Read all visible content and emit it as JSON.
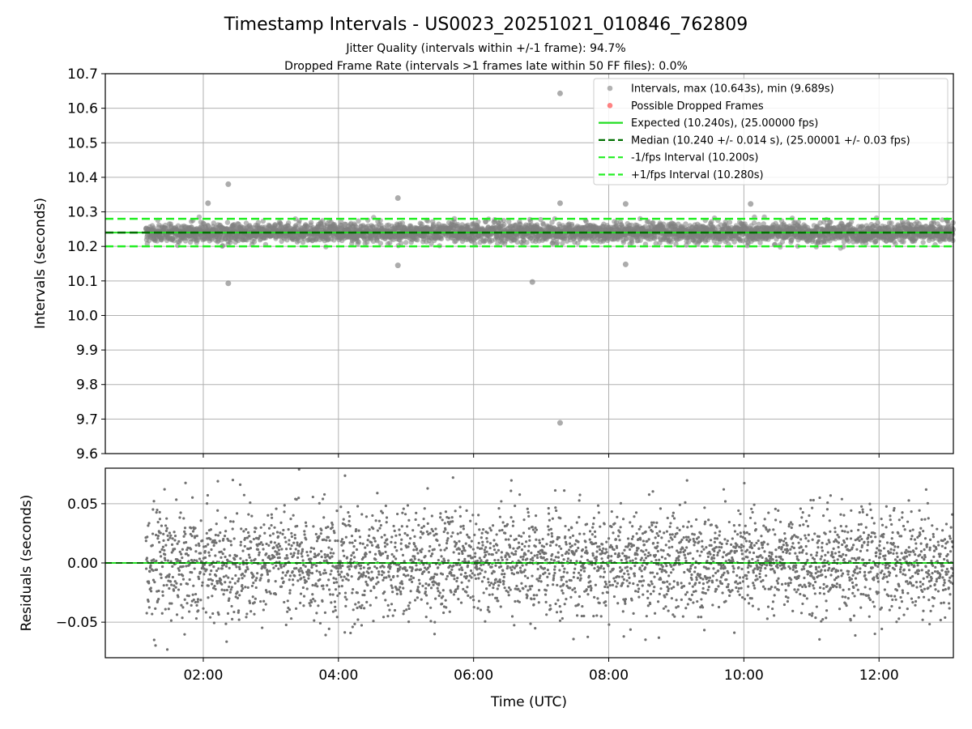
{
  "chart_data": [
    {
      "type": "scatter",
      "panel": "intervals",
      "title": "Timestamp Intervals - US0023_20251021_010846_762809",
      "subtitle_lines": [
        "Jitter Quality (intervals within +/-1 frame): 94.7%",
        "Dropped Frame Rate (intervals >1 frames late within 50 FF files): 0.0%"
      ],
      "xlabel": "",
      "ylabel": "Intervals (seconds)",
      "xlim_hours": [
        0.55,
        13.1
      ],
      "ylim": [
        9.6,
        10.7
      ],
      "yticks": [
        9.6,
        9.7,
        9.8,
        9.9,
        10.0,
        10.1,
        10.2,
        10.3,
        10.4,
        10.5,
        10.6,
        10.7
      ],
      "ytick_labels": [
        "9.6",
        "9.7",
        "9.8",
        "9.9",
        "10.0",
        "10.1",
        "10.2",
        "10.3",
        "10.4",
        "10.5",
        "10.6",
        "10.7"
      ],
      "grid": true,
      "legend_position": "top-right",
      "legend": [
        {
          "label": "Intervals, max (10.643s), min (9.689s)",
          "kind": "dot",
          "color": "#808080"
        },
        {
          "label": "Possible Dropped Frames",
          "kind": "dot",
          "color": "#ff3030"
        },
        {
          "label": "Expected (10.240s), (25.00000 fps)",
          "kind": "solid",
          "color": "#22dd22"
        },
        {
          "label": "Median (10.240 +/- 0.014 s), (25.00001 +/- 0.03 fps)",
          "kind": "dashed",
          "color": "#007000"
        },
        {
          "label": "-1/fps Interval (10.200s)",
          "kind": "dashed",
          "color": "#22ee22"
        },
        {
          "label": "+1/fps Interval (10.280s)",
          "kind": "dashed",
          "color": "#22ee22"
        }
      ],
      "reference_lines": {
        "expected": 10.24,
        "median": 10.24,
        "minus_1_fps": 10.2,
        "plus_1_fps": 10.28
      },
      "series": [
        {
          "name": "Intervals, max (10.643s), min (9.689s)",
          "color": "#808080",
          "x_range_hours": [
            1.15,
            13.1
          ],
          "count": 3500,
          "center": 10.24,
          "spread_sd": 0.014,
          "max": 10.643,
          "min": 9.689
        },
        {
          "name": "Possible Dropped Frames",
          "color": "#ff3030",
          "values": []
        }
      ],
      "notable_points": [
        {
          "x_hours": 7.28,
          "y": 10.643
        },
        {
          "x_hours": 7.28,
          "y": 9.689
        },
        {
          "x_hours": 2.37,
          "y": 10.38
        },
        {
          "x_hours": 2.37,
          "y": 10.093
        },
        {
          "x_hours": 6.87,
          "y": 10.097
        },
        {
          "x_hours": 4.88,
          "y": 10.34
        },
        {
          "x_hours": 2.07,
          "y": 10.325
        },
        {
          "x_hours": 7.28,
          "y": 10.325
        },
        {
          "x_hours": 8.25,
          "y": 10.323
        },
        {
          "x_hours": 10.1,
          "y": 10.323
        },
        {
          "x_hours": 4.88,
          "y": 10.145
        },
        {
          "x_hours": 8.25,
          "y": 10.148
        }
      ]
    },
    {
      "type": "scatter",
      "panel": "residuals",
      "xlabel": "Time (UTC)",
      "ylabel": "Residuals (seconds)",
      "xlim_hours": [
        0.55,
        13.1
      ],
      "ylim": [
        -0.08,
        0.08
      ],
      "yticks": [
        -0.05,
        0.0,
        0.05
      ],
      "ytick_labels": [
        "−0.05",
        "0.00",
        "0.05"
      ],
      "xticks_hours": [
        2,
        4,
        6,
        8,
        10,
        12
      ],
      "xtick_labels": [
        "02:00",
        "04:00",
        "06:00",
        "08:00",
        "10:00",
        "12:00"
      ],
      "grid": true,
      "reference_lines": {
        "zero": 0.0
      },
      "series": [
        {
          "name": "Residuals",
          "color": "#707070",
          "x_range_hours": [
            1.15,
            13.1
          ],
          "count": 3500,
          "center": 0.0,
          "spread_sd": 0.022
        }
      ]
    }
  ]
}
